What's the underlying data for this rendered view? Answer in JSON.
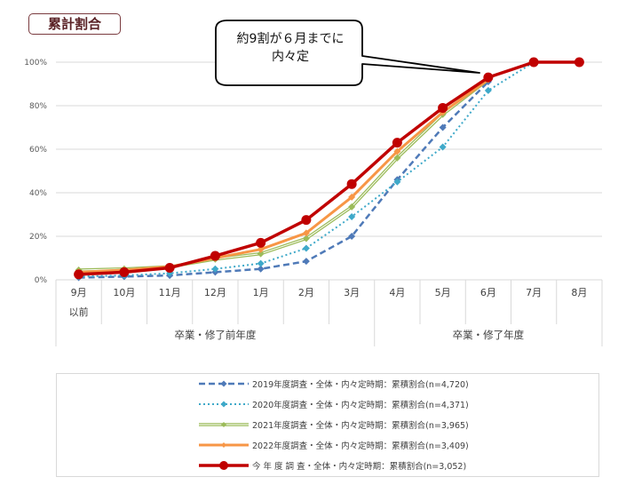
{
  "title_badge": "累計割合",
  "callout": {
    "line1": "約9割が６月までに",
    "line2": "内々定"
  },
  "y_axis": {
    "ticks": [
      "0%",
      "20%",
      "40%",
      "60%",
      "80%",
      "100%"
    ]
  },
  "x_axis": {
    "months": [
      "9月",
      "10月",
      "11月",
      "12月",
      "1月",
      "2月",
      "3月",
      "4月",
      "5月",
      "6月",
      "7月",
      "8月"
    ],
    "first_sub": "以前",
    "groups": [
      "卒業・修了前年度",
      "卒業・修了年度"
    ]
  },
  "legend": [
    {
      "label": "2019年度調査・全体・内々定時期：累積割合(n=4,720)",
      "color": "#4f7ab8",
      "style": "dashed"
    },
    {
      "label": "2020年度調査・全体・内々定時期：累積割合(n=4,371)",
      "color": "#3fa9c9",
      "style": "dotted"
    },
    {
      "label": "2021年度調査・全体・内々定時期：累積割合(n=3,965)",
      "color": "#9bbb59",
      "style": "double"
    },
    {
      "label": "2022年度調査・全体・内々定時期：累積割合(n=3,409)",
      "color": "#f79646",
      "style": "solid"
    },
    {
      "label": "今 年 度 調 査・全体・内々定時期：累積割合(n=3,052)",
      "color": "#c00000",
      "style": "solid-thick"
    }
  ],
  "chart_data": {
    "type": "line",
    "title": "累計割合",
    "xlabel": "",
    "ylabel": "",
    "ylim": [
      0,
      100
    ],
    "grid": true,
    "legend_position": "bottom",
    "categories": [
      "9月以前",
      "10月",
      "11月",
      "12月",
      "1月",
      "2月",
      "3月",
      "4月",
      "5月",
      "6月",
      "7月",
      "8月"
    ],
    "category_groups": [
      {
        "label": "卒業・修了前年度",
        "span": [
          "9月以前",
          "3月"
        ]
      },
      {
        "label": "卒業・修了年度",
        "span": [
          "4月",
          "8月"
        ]
      }
    ],
    "annotation": "約9割が６月までに内々定",
    "series": [
      {
        "name": "2019年度調査・全体・内々定時期：累積割合(n=4,720)",
        "values": [
          1,
          1.5,
          2,
          3.5,
          5,
          8.5,
          20,
          46,
          70,
          91,
          null,
          null
        ]
      },
      {
        "name": "2020年度調査・全体・内々定時期：累積割合(n=4,371)",
        "values": [
          1.5,
          2,
          3,
          5,
          7.5,
          14.5,
          29,
          45,
          61,
          87,
          100,
          null
        ]
      },
      {
        "name": "2021年度調査・全体・内々定時期：累積割合(n=3,965)",
        "values": [
          4.5,
          5,
          6,
          9.5,
          12,
          19,
          33.5,
          56,
          76,
          92,
          null,
          null
        ]
      },
      {
        "name": "2022年度調査・全体・内々定時期：累積割合(n=3,409)",
        "values": [
          3.5,
          4.5,
          6,
          10,
          14,
          21.5,
          38,
          59,
          77,
          92,
          null,
          null
        ]
      },
      {
        "name": "今年度調査・全体・内々定時期：累積割合(n=3,052)",
        "values": [
          2.5,
          3.5,
          5.5,
          11,
          17,
          27.5,
          44,
          63,
          79,
          93,
          100,
          100
        ]
      }
    ]
  }
}
